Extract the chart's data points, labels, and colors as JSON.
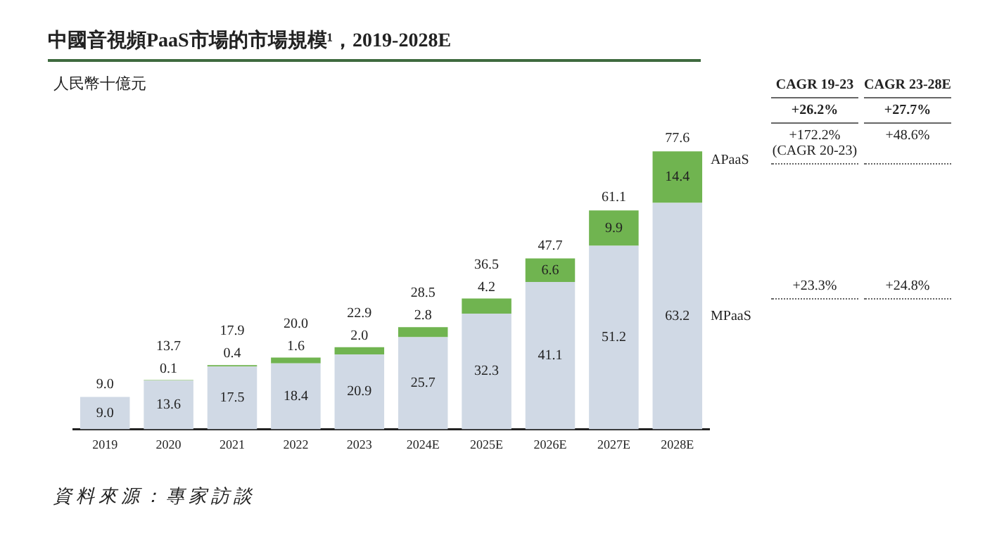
{
  "chart_data": {
    "type": "bar",
    "stacked": true,
    "title": "中國音視頻PaaS市場的市場規模¹，2019-2028E",
    "ylabel": "人民幣十億元",
    "categories": [
      "2019",
      "2020",
      "2021",
      "2022",
      "2023",
      "2024E",
      "2025E",
      "2026E",
      "2027E",
      "2028E"
    ],
    "series": [
      {
        "name": "MPaaS",
        "color": "#d0d9e5",
        "values": [
          9.0,
          13.6,
          17.5,
          18.4,
          20.9,
          25.7,
          32.3,
          41.1,
          51.2,
          63.2
        ],
        "value_labels": [
          "9.0",
          "13.6",
          "17.5",
          "18.4",
          "20.9",
          "25.7",
          "32.3",
          "41.1",
          "51.2",
          "63.2"
        ]
      },
      {
        "name": "APaaS",
        "color": "#70b450",
        "values": [
          0.0,
          0.1,
          0.4,
          1.6,
          2.0,
          2.8,
          4.2,
          6.6,
          9.9,
          14.4
        ],
        "value_labels": [
          null,
          "0.1",
          "0.4",
          "1.6",
          "2.0",
          "2.8",
          "4.2",
          "6.6",
          "9.9",
          "14.4"
        ]
      }
    ],
    "totals": [
      "9.0",
      "13.7",
      "17.9",
      "20.0",
      "22.9",
      "28.5",
      "36.5",
      "47.7",
      "61.1",
      "77.6"
    ],
    "grid": false,
    "legend": false,
    "tick_labels": "x",
    "annotations": [
      "CAGR 19-23",
      "CAGR 23-28E",
      "+26.2%",
      "+27.7%",
      "+172.2% (CAGR 20-23)",
      "+48.6%",
      "+23.3%",
      "+24.8%",
      "資料來源：專家訪談"
    ]
  }
}
